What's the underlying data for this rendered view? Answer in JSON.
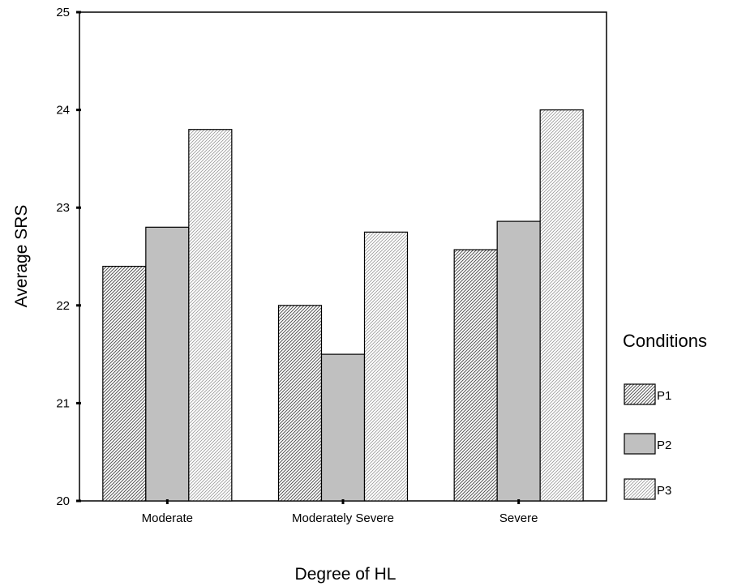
{
  "chart_data": {
    "type": "bar",
    "title": "",
    "xlabel": "Degree of HL",
    "ylabel": "Average SRS",
    "ylim": [
      20,
      25
    ],
    "yticks": [
      20,
      21,
      22,
      23,
      24,
      25
    ],
    "categories": [
      "Moderate",
      "Moderately Severe",
      "Severe"
    ],
    "legend_title": "Conditions",
    "legend_position": "right",
    "grid": false,
    "series": [
      {
        "name": "P1",
        "values": [
          22.4,
          22.0,
          22.57
        ],
        "pattern": "dense-diagonal-hatch",
        "color": "#c8c8c8"
      },
      {
        "name": "P2",
        "values": [
          22.8,
          21.5,
          22.86
        ],
        "pattern": "solid",
        "color": "#c0c0c0"
      },
      {
        "name": "P3",
        "values": [
          23.8,
          22.75,
          24.0
        ],
        "pattern": "light-diagonal-hatch",
        "color": "#e6e6e6"
      }
    ]
  }
}
